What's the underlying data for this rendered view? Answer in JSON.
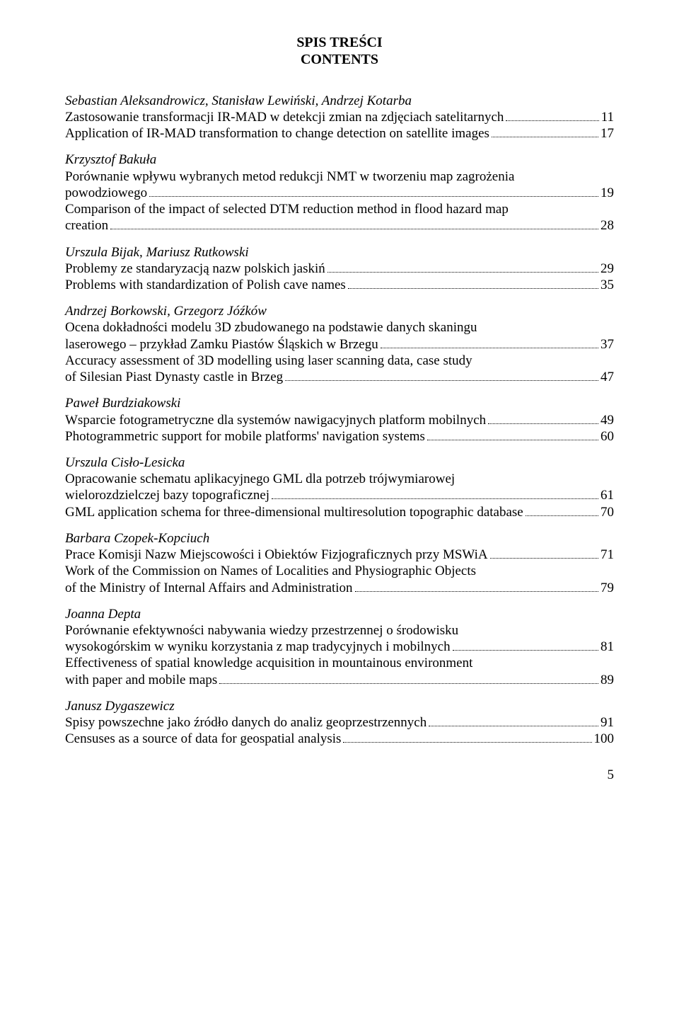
{
  "header": {
    "line1": "SPIS TREŚCI",
    "line2": "CONTENTS"
  },
  "entries": [
    {
      "authors": "Sebastian Aleksandrowicz, Stanisław Lewiński, Andrzej Kotarba",
      "lines": [
        {
          "text": "Zastosowanie transformacji IR-MAD w detekcji zmian na zdjęciach satelitarnych",
          "page": "11",
          "cont": true
        },
        {
          "text": "Application of IR-MAD transformation to change detection on satellite images",
          "page": "17",
          "cont": true
        }
      ]
    },
    {
      "authors": "Krzysztof Bakuła",
      "lines": [
        {
          "text": "Porównanie wpływu wybranych metod redukcji NMT w tworzeniu map zagrożenia"
        },
        {
          "text": "powodziowego",
          "page": "19",
          "cont": true
        },
        {
          "text": "Comparison of the impact of selected DTM reduction method in flood hazard map"
        },
        {
          "text": "creation",
          "page": "28",
          "cont": true
        }
      ]
    },
    {
      "authors": "Urszula Bijak, Mariusz Rutkowski",
      "lines": [
        {
          "text": "Problemy ze standaryzacją nazw polskich jaskiń",
          "page": "29",
          "cont": true
        },
        {
          "text": "Problems with standardization of Polish cave names",
          "page": "35",
          "cont": true
        }
      ]
    },
    {
      "authors": "Andrzej Borkowski, Grzegorz Jóźków",
      "lines": [
        {
          "text": "Ocena dokładności modelu 3D zbudowanego na podstawie danych skaningu"
        },
        {
          "text": "laserowego – przykład Zamku Piastów Śląskich w Brzegu",
          "page": "37",
          "cont": true
        },
        {
          "text": "Accuracy assessment of 3D modelling using laser scanning data, case study"
        },
        {
          "text": "of Silesian Piast Dynasty castle in Brzeg",
          "page": "47",
          "cont": true
        }
      ]
    },
    {
      "authors": "Paweł Burdziakowski",
      "lines": [
        {
          "text": "Wsparcie fotogrametryczne dla systemów nawigacyjnych platform mobilnych",
          "page": "49",
          "cont": true
        },
        {
          "text": "Photogrammetric support for mobile platforms' navigation systems",
          "page": "60",
          "cont": true
        }
      ]
    },
    {
      "authors": "Urszula Cisło-Lesicka",
      "lines": [
        {
          "text": "Opracowanie schematu aplikacyjnego GML dla potrzeb trójwymiarowej"
        },
        {
          "text": "wielorozdzielczej bazy topograficznej",
          "page": "61",
          "cont": true
        },
        {
          "text": "GML application schema for three-dimensional multiresolution topographic database",
          "page": "70",
          "cont": true
        }
      ]
    },
    {
      "authors": "Barbara Czopek-Kopciuch",
      "lines": [
        {
          "text": "Prace Komisji Nazw Miejscowości i Obiektów Fizjograficznych przy MSWiA",
          "page": "71",
          "cont": true
        },
        {
          "text": "Work of the Commission on Names of Localities and Physiographic Objects"
        },
        {
          "text": "of the Ministry of Internal Affairs and Administration",
          "page": "79",
          "cont": true
        }
      ]
    },
    {
      "authors": "Joanna Depta",
      "lines": [
        {
          "text": "Porównanie efektywności nabywania wiedzy przestrzennej o środowisku"
        },
        {
          "text": "wysokogórskim w wyniku korzystania z map tradycyjnych i mobilnych",
          "page": "81",
          "cont": true
        },
        {
          "text": "Effectiveness of spatial knowledge acquisition in mountainous environment"
        },
        {
          "text": "with paper and mobile maps",
          "page": "89",
          "cont": true
        }
      ]
    },
    {
      "authors": "Janusz Dygaszewicz",
      "lines": [
        {
          "text": "Spisy powszechne jako źródło danych do analiz geoprzestrzennych",
          "page": "91",
          "cont": true
        },
        {
          "text": "Censuses as a source of data for geospatial analysis",
          "page": "100",
          "cont": true
        }
      ]
    }
  ],
  "pageNumber": "5",
  "style": {
    "bg": "#ffffff",
    "text": "#000000",
    "bodyFontSizePx": 19,
    "titleFontSizePx": 20
  }
}
